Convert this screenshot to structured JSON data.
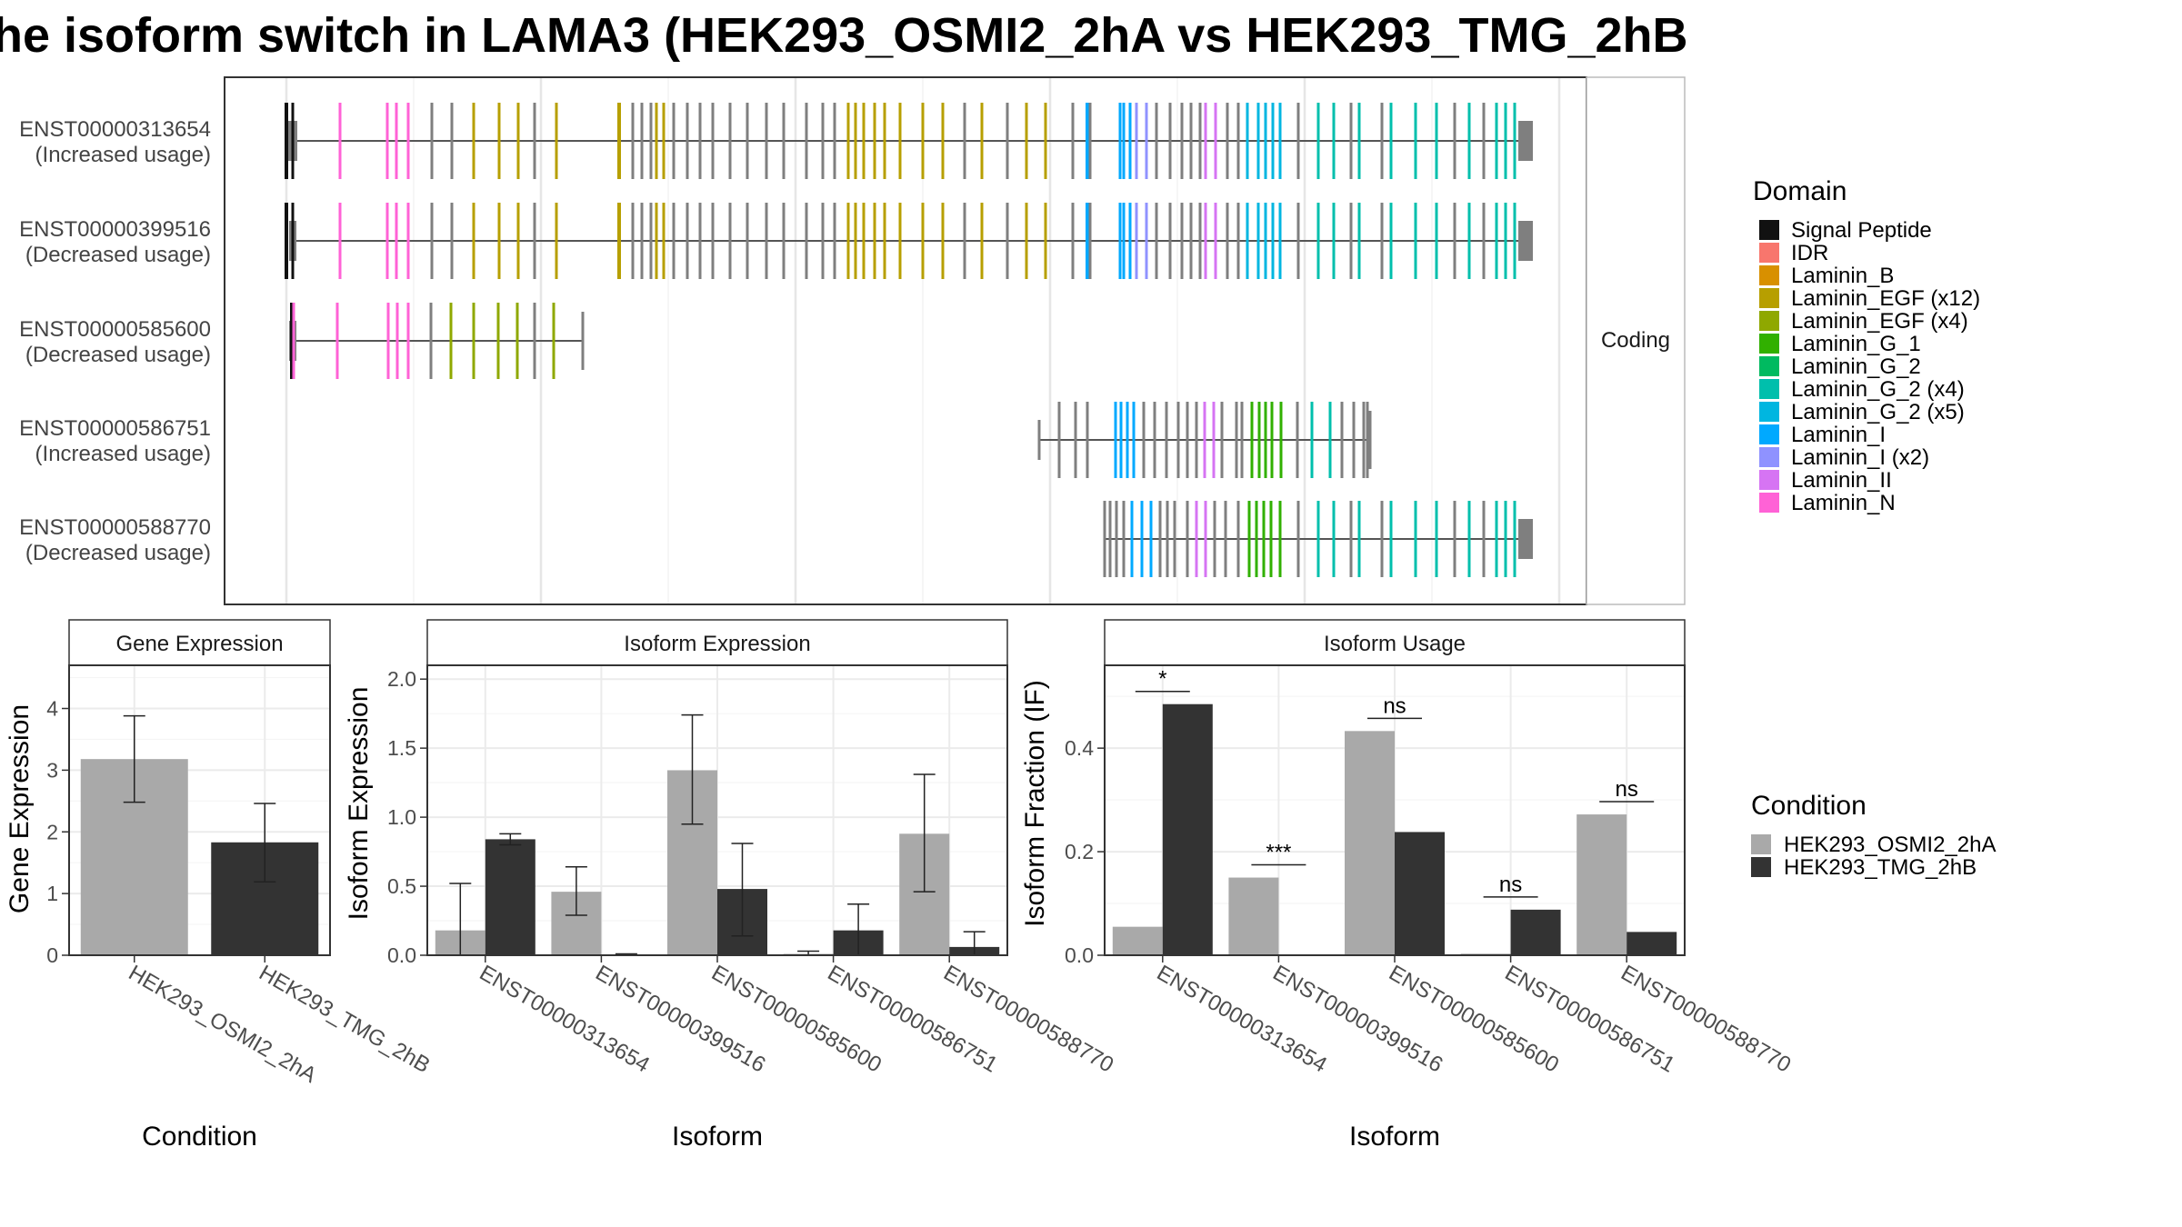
{
  "title": "he isoform switch in LAMA3 (HEK293_OSMI2_2hA vs HEK293_TMG_2hB",
  "colors": {
    "condition_a": "#a9a9a9",
    "condition_b": "#333333",
    "intron": "#555555",
    "exon": "#7f7f7f"
  },
  "chart_data": [
    {
      "type": "table",
      "panel": "isoform-structure",
      "facet_label": "Coding",
      "isoforms": [
        {
          "id": "ENST00000313654",
          "usage": "(Increased usage)"
        },
        {
          "id": "ENST00000399516",
          "usage": "(Decreased usage)"
        },
        {
          "id": "ENST00000585600",
          "usage": "(Decreased usage)"
        },
        {
          "id": "ENST00000586751",
          "usage": "(Increased usage)"
        },
        {
          "id": "ENST00000588770",
          "usage": "(Decreased usage)"
        }
      ],
      "legend": {
        "title": "Domain",
        "placement": "right",
        "entries": [
          {
            "name": "Signal Peptide",
            "color": "#111111"
          },
          {
            "name": "IDR",
            "color": "#f8766d"
          },
          {
            "name": "Laminin_B",
            "color": "#d89000"
          },
          {
            "name": "Laminin_EGF (x12)",
            "color": "#b79f00"
          },
          {
            "name": "Laminin_EGF (x4)",
            "color": "#8fa800"
          },
          {
            "name": "Laminin_G_1",
            "color": "#31b000"
          },
          {
            "name": "Laminin_G_2",
            "color": "#00ba60"
          },
          {
            "name": "Laminin_G_2 (x4)",
            "color": "#00bfac"
          },
          {
            "name": "Laminin_G_2 (x5)",
            "color": "#00b6e0"
          },
          {
            "name": "Laminin_I",
            "color": "#00a9ff"
          },
          {
            "name": "Laminin_I (x2)",
            "color": "#8f92ff"
          },
          {
            "name": "Laminin_II",
            "color": "#d674f3"
          },
          {
            "name": "Laminin_N",
            "color": "#ff62d6"
          }
        ]
      }
    },
    {
      "type": "bar",
      "title": "Gene Expression",
      "xlabel": "Condition",
      "ylabel": "Gene Expression",
      "ylim": [
        0,
        4.7
      ],
      "yticks": [
        "0",
        "1",
        "2",
        "3",
        "4"
      ],
      "categories": [
        "HEK293_OSMI2_2hA",
        "HEK293_TMG_2hB"
      ],
      "values": [
        3.18,
        1.83
      ],
      "errors": [
        [
          2.48,
          3.88
        ],
        [
          1.19,
          2.46
        ]
      ]
    },
    {
      "type": "bar",
      "title": "Isoform Expression",
      "xlabel": "Isoform",
      "ylabel": "Isoform Expression",
      "ylim": [
        0,
        2.1
      ],
      "yticks": [
        "0.0",
        "0.5",
        "1.0",
        "1.5",
        "2.0"
      ],
      "categories": [
        "ENST00000313654",
        "ENST00000399516",
        "ENST00000585600",
        "ENST00000586751",
        "ENST00000588770"
      ],
      "series": [
        {
          "name": "HEK293_OSMI2_2hA",
          "values": [
            0.18,
            0.46,
            1.34,
            0.01,
            0.88
          ],
          "errors": [
            [
              0.0,
              0.52
            ],
            [
              0.29,
              0.64
            ],
            [
              0.95,
              1.74
            ],
            [
              0.0,
              0.03
            ],
            [
              0.46,
              1.31
            ]
          ]
        },
        {
          "name": "HEK293_TMG_2hB",
          "values": [
            0.84,
            0.0,
            0.48,
            0.18,
            0.06
          ],
          "errors": [
            [
              0.8,
              0.88
            ],
            [
              0.0,
              0.01
            ],
            [
              0.14,
              0.81
            ],
            [
              0.0,
              0.37
            ],
            [
              0.0,
              0.17
            ]
          ]
        }
      ]
    },
    {
      "type": "bar",
      "title": "Isoform Usage",
      "xlabel": "Isoform",
      "ylabel": "Isoform Fraction (IF)",
      "ylim": [
        0,
        0.56
      ],
      "yticks": [
        "0.0",
        "0.2",
        "0.4"
      ],
      "categories": [
        "ENST00000313654",
        "ENST00000399516",
        "ENST00000585600",
        "ENST00000586751",
        "ENST00000588770"
      ],
      "series": [
        {
          "name": "HEK293_OSMI2_2hA",
          "values": [
            0.055,
            0.15,
            0.433,
            0.003,
            0.272
          ]
        },
        {
          "name": "HEK293_TMG_2hB",
          "values": [
            0.485,
            0.0,
            0.238,
            0.088,
            0.045
          ]
        }
      ],
      "significance": [
        "*",
        "***",
        "ns",
        "ns",
        "ns"
      ],
      "legend": {
        "title": "Condition",
        "placement": "right",
        "entries": [
          {
            "name": "HEK293_OSMI2_2hA",
            "color": "#a9a9a9"
          },
          {
            "name": "HEK293_TMG_2hB",
            "color": "#333333"
          }
        ]
      }
    }
  ]
}
